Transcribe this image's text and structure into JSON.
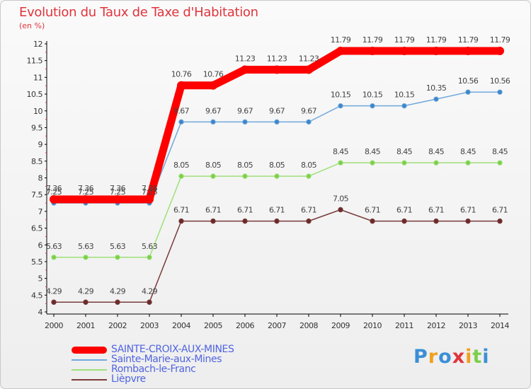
{
  "chart_data": {
    "type": "line",
    "title": "Evolution du Taux de Taxe d'Habitation",
    "subtitle": "(en %)",
    "xlabel": "",
    "ylabel": "",
    "x": [
      "2000",
      "2001",
      "2002",
      "2003",
      "2004",
      "2005",
      "2006",
      "2007",
      "2008",
      "2009",
      "2010",
      "2011",
      "2012",
      "2013",
      "2014"
    ],
    "ylim": [
      4,
      12
    ],
    "yticks": [
      "4",
      "4.5",
      "5",
      "5.5",
      "6",
      "6.5",
      "7",
      "7.5",
      "8",
      "8.5",
      "9",
      "9.5",
      "10",
      "10.5",
      "11",
      "11.5",
      "12"
    ],
    "grid": false,
    "legend": "bottom-left",
    "series": [
      {
        "name": "SAINTE-CROIX-AUX-MINES",
        "color": "#ff0000",
        "emphasis": true,
        "values": [
          7.36,
          7.36,
          7.36,
          7.36,
          10.76,
          10.76,
          11.23,
          11.23,
          11.23,
          11.79,
          11.79,
          11.79,
          11.79,
          11.79,
          11.79
        ],
        "labels": [
          "7.36",
          "7.36",
          "7.36",
          "7.36",
          "10.76",
          "10.76",
          "11.23",
          "11.23",
          "11.23",
          "11.79",
          "11.79",
          "11.79",
          "11.79",
          "11.79",
          "11.79"
        ]
      },
      {
        "name": "Sainte-Marie-aux-Mines",
        "color": "#6fa8dc",
        "marker": "#3d85c6",
        "values": [
          7.25,
          7.25,
          7.25,
          7.25,
          9.67,
          9.67,
          9.67,
          9.67,
          9.67,
          10.15,
          10.15,
          10.15,
          10.35,
          10.56,
          10.56
        ],
        "labels": [
          "7.25",
          "7.25",
          "7.25",
          "7.25",
          "9.67",
          "9.67",
          "9.67",
          "9.67",
          "9.67",
          "10.15",
          "10.15",
          "10.15",
          "10.35",
          "10.56",
          "10.56"
        ]
      },
      {
        "name": "Rombach-le-Franc",
        "color": "#9fe07a",
        "marker": "#7ccf4a",
        "values": [
          5.63,
          5.63,
          5.63,
          5.63,
          8.05,
          8.05,
          8.05,
          8.05,
          8.05,
          8.45,
          8.45,
          8.45,
          8.45,
          8.45,
          8.45
        ],
        "labels": [
          "5.63",
          "5.63",
          "5.63",
          "5.63",
          "8.05",
          "8.05",
          "8.05",
          "8.05",
          "8.05",
          "8.45",
          "8.45",
          "8.45",
          "8.45",
          "8.45",
          "8.45"
        ]
      },
      {
        "name": "Lièpvre",
        "color": "#7a3b3b",
        "marker": "#6b2a2a",
        "values": [
          4.29,
          4.29,
          4.29,
          4.29,
          6.71,
          6.71,
          6.71,
          6.71,
          6.71,
          7.05,
          6.71,
          6.71,
          6.71,
          6.71,
          6.71
        ],
        "labels": [
          "4.29",
          "4.29",
          "4.29",
          "4.29",
          "6.71",
          "6.71",
          "6.71",
          "6.71",
          "6.71",
          "7.05",
          "6.71",
          "6.71",
          "6.71",
          "6.71",
          "6.71"
        ]
      }
    ]
  },
  "logo": {
    "letters": [
      "P",
      "r",
      "o",
      "x",
      "i",
      "t",
      "i"
    ],
    "colors": [
      "#3b8fd6",
      "#f0a020",
      "#3b8fd6",
      "#e0353c",
      "#f0a020",
      "#7ccf4a",
      "#3b8fd6"
    ]
  }
}
